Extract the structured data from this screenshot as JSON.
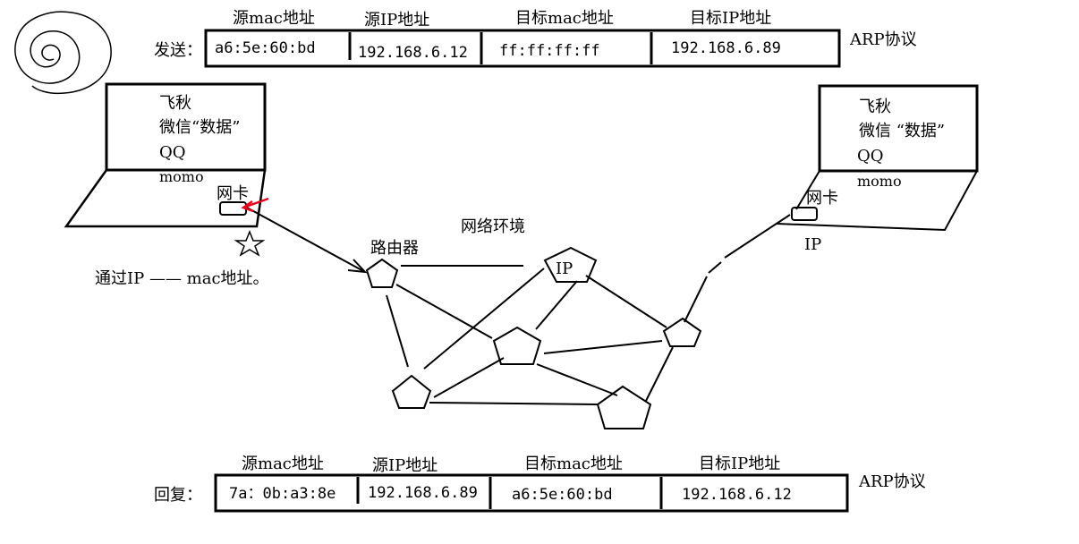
{
  "colors": {
    "ink": "#000000",
    "accent_arrow": "#e8001c",
    "background": "#ffffff"
  },
  "send": {
    "label": "发送：",
    "protocol": "ARP协议",
    "headers": [
      "源mac地址",
      "源IP地址",
      "目标mac地址",
      "目标IP地址"
    ],
    "values": [
      "a6:5e:60:bd",
      "192.168.6.12",
      "ff:ff:ff:ff",
      "192.168.6.89"
    ]
  },
  "reply": {
    "label": "回复：",
    "protocol": "ARP协议",
    "headers": [
      "源mac地址",
      "源IP地址",
      "目标mac地址",
      "目标IP地址"
    ],
    "values": [
      "7a：0b:a3:8e",
      "192.168.6.89",
      "a6:5e:60:bd",
      "192.168.6.12"
    ]
  },
  "left_laptop": {
    "lines": [
      "飞秋",
      "微信“数据”",
      "QQ",
      "momo"
    ],
    "nic_label": "网卡"
  },
  "right_laptop": {
    "lines": [
      "飞秋",
      "微信 “数据”",
      "QQ",
      "momo"
    ],
    "nic_label": "网卡",
    "ip_label": "IP"
  },
  "network": {
    "router_label": "路由器",
    "env_label": "网络环境",
    "ip_node_label": "IP"
  },
  "note": "通过IP —— mac地址。",
  "icons": {
    "star": "star-icon",
    "spiral": "scribble-icon"
  }
}
